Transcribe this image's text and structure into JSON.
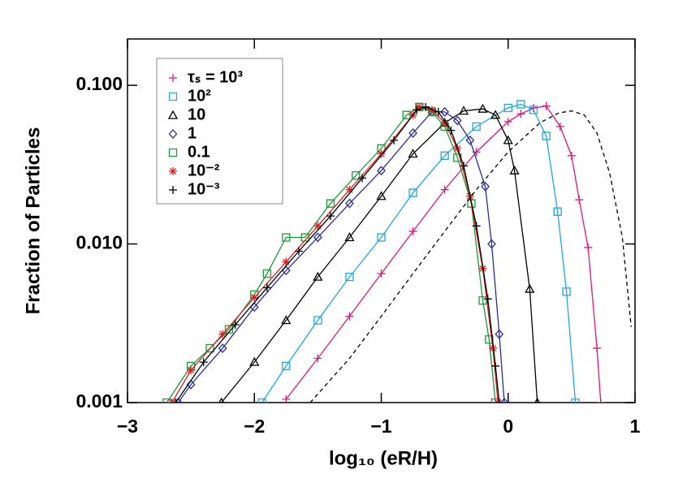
{
  "chart_data": {
    "type": "line",
    "x_label": "log₁₀ (eR/H)",
    "y_label": "Fraction of Particles",
    "y_log": true,
    "xlim": [
      -3,
      1
    ],
    "ylim": [
      0.001,
      0.196
    ],
    "xticks": [
      {
        "value": -3,
        "label": "−3"
      },
      {
        "value": -2,
        "label": "−2"
      },
      {
        "value": -1,
        "label": "−1"
      },
      0,
      1
    ],
    "yticks": [
      0.001,
      {
        "value": 0.01,
        "label": "0.010"
      },
      {
        "value": 0.1,
        "label": "0.100"
      }
    ],
    "legend": "upper left",
    "series": [
      {
        "name": "τₛ = 10³",
        "color": "#e0157f",
        "marker": "plus",
        "x": [
          -1.75,
          -1.5,
          -1.25,
          -1.0,
          -0.75,
          -0.5,
          -0.25,
          0,
          0.1,
          0.2,
          0.3,
          0.41,
          0.5,
          0.56,
          0.63,
          0.7,
          0.73
        ],
        "values": [
          0.00105,
          0.0019,
          0.0035,
          0.0065,
          0.012,
          0.022,
          0.038,
          0.059,
          0.066,
          0.072,
          0.074,
          0.055,
          0.036,
          0.019,
          0.0095,
          0.0022,
          0.001
        ]
      },
      {
        "name": "10²",
        "color": "#1ea7e1",
        "marker": "square",
        "x": [
          -1.94,
          -1.75,
          -1.5,
          -1.25,
          -1.0,
          -0.75,
          -0.5,
          -0.25,
          0,
          0.1,
          0.2,
          0.3,
          0.39,
          0.46,
          0.53
        ],
        "values": [
          0.001,
          0.0017,
          0.0033,
          0.0062,
          0.011,
          0.021,
          0.036,
          0.055,
          0.072,
          0.076,
          0.07,
          0.048,
          0.016,
          0.005,
          0.001
        ]
      },
      {
        "name": "10",
        "color": "#000000",
        "marker": "triangle",
        "x": [
          -2.26,
          -2.0,
          -1.75,
          -1.5,
          -1.25,
          -1.0,
          -0.75,
          -0.5,
          -0.35,
          -0.2,
          -0.1,
          0,
          0.05,
          0.17,
          0.23
        ],
        "values": [
          0.001,
          0.0018,
          0.0033,
          0.0062,
          0.011,
          0.02,
          0.037,
          0.058,
          0.069,
          0.071,
          0.065,
          0.045,
          0.029,
          0.0052,
          0.001
        ]
      },
      {
        "name": "1",
        "color": "#2b2b9a",
        "marker": "diamond",
        "x": [
          -2.6,
          -2.5,
          -2.25,
          -2.0,
          -1.75,
          -1.5,
          -1.25,
          -1.0,
          -0.75,
          -0.6,
          -0.5,
          -0.4,
          -0.3,
          -0.18,
          -0.13,
          -0.07,
          -0.03
        ],
        "values": [
          0.001,
          0.0013,
          0.0022,
          0.004,
          0.0068,
          0.011,
          0.018,
          0.029,
          0.05,
          0.068,
          0.068,
          0.06,
          0.045,
          0.023,
          0.01,
          0.0027,
          0.001
        ]
      },
      {
        "name": "0.1",
        "color": "#1a9a3a",
        "marker": "square",
        "x": [
          -2.69,
          -2.5,
          -2.35,
          -2.2,
          -2.0,
          -1.9,
          -1.75,
          -1.6,
          -1.4,
          -1.2,
          -1.0,
          -0.8,
          -0.7,
          -0.6,
          -0.5,
          -0.4,
          -0.29,
          -0.2,
          -0.15,
          -0.1
        ],
        "values": [
          0.001,
          0.0017,
          0.0022,
          0.0029,
          0.0048,
          0.0065,
          0.011,
          0.011,
          0.018,
          0.027,
          0.04,
          0.065,
          0.073,
          0.068,
          0.055,
          0.035,
          0.018,
          0.0044,
          0.0025,
          0.001
        ]
      },
      {
        "name": "10⁻²",
        "color": "#e02020",
        "marker": "asterisk",
        "x": [
          -2.65,
          -2.5,
          -2.25,
          -2.0,
          -1.75,
          -1.5,
          -1.25,
          -1.0,
          -0.75,
          -0.7,
          -0.6,
          -0.5,
          -0.4,
          -0.3,
          -0.2,
          -0.12,
          -0.08
        ],
        "values": [
          0.001,
          0.0016,
          0.0027,
          0.0046,
          0.0077,
          0.013,
          0.022,
          0.037,
          0.065,
          0.073,
          0.07,
          0.058,
          0.04,
          0.02,
          0.007,
          0.0022,
          0.001
        ]
      },
      {
        "name": "10⁻³",
        "color": "#000000",
        "marker": "plus",
        "x": [
          -2.62,
          -2.4,
          -2.15,
          -1.9,
          -1.65,
          -1.4,
          -1.15,
          -0.9,
          -0.72,
          -0.65,
          -0.55,
          -0.45,
          -0.35,
          -0.25,
          -0.16,
          -0.1,
          -0.07
        ],
        "values": [
          0.001,
          0.0018,
          0.0031,
          0.0053,
          0.009,
          0.015,
          0.026,
          0.045,
          0.07,
          0.073,
          0.068,
          0.052,
          0.031,
          0.013,
          0.0045,
          0.0017,
          0.001
        ]
      },
      {
        "color": "#000000",
        "dashed": true,
        "x": [
          -1.56,
          -1.25,
          -1.0,
          -0.75,
          -0.5,
          -0.25,
          0,
          0.25,
          0.4,
          0.5,
          0.6,
          0.7,
          0.8,
          0.9,
          0.97
        ],
        "values": [
          0.001,
          0.0019,
          0.0035,
          0.0065,
          0.012,
          0.022,
          0.038,
          0.058,
          0.067,
          0.069,
          0.065,
          0.05,
          0.028,
          0.011,
          0.003
        ]
      }
    ]
  }
}
